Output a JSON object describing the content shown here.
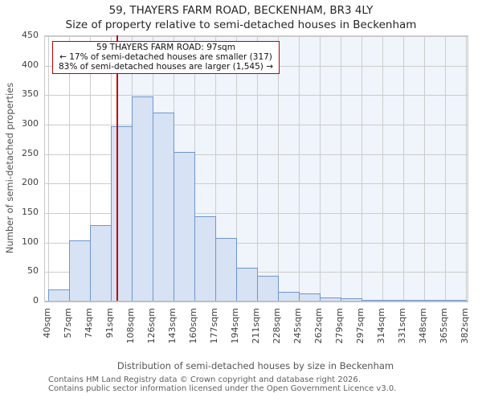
{
  "title": "59, THAYERS FARM ROAD, BECKENHAM, BR3 4LY",
  "subtitle": "Size of property relative to semi-detached houses in Beckenham",
  "annotation": {
    "line1": "59 THAYERS FARM ROAD: 97sqm",
    "line2": "← 17% of semi-detached houses are smaller (317)",
    "line3": "83% of semi-detached houses are larger (1,545) →"
  },
  "chart_data": {
    "type": "bar",
    "title": "Size of property relative to semi-detached houses in Beckenham",
    "categories": [
      "40sqm",
      "57sqm",
      "74sqm",
      "91sqm",
      "108sqm",
      "126sqm",
      "143sqm",
      "160sqm",
      "177sqm",
      "194sqm",
      "211sqm",
      "228sqm",
      "245sqm",
      "262sqm",
      "279sqm",
      "297sqm",
      "314sqm",
      "331sqm",
      "348sqm",
      "365sqm",
      "382sqm"
    ],
    "values": [
      20,
      103,
      130,
      297,
      348,
      320,
      253,
      145,
      108,
      57,
      44,
      17,
      13,
      7,
      5,
      2,
      1,
      1,
      1,
      1
    ],
    "xlabel": "Distribution of semi-detached houses by size in Beckenham",
    "ylabel": "Number of semi-detached properties",
    "ylim": [
      0,
      450
    ],
    "yticks": [
      0,
      50,
      100,
      150,
      200,
      250,
      300,
      350,
      400,
      450
    ],
    "grid": true,
    "legend": "none",
    "marker": {
      "value_sqm": 97,
      "label": "59 THAYERS FARM ROAD: 97sqm",
      "smaller_pct": "17%",
      "smaller_count": 317,
      "larger_pct": "83%",
      "larger_count": "1,545"
    },
    "colors": {
      "bar_fill": "#d7e2f4",
      "bar_edge": "#6d97cd",
      "marker_red": "#c00000",
      "shade_right_of_marker": "#f0f4fb",
      "gridline": "#cccccc"
    }
  },
  "footer": {
    "line1": "Contains HM Land Registry data © Crown copyright and database right 2026.",
    "line2": "Contains public sector information licensed under the Open Government Licence v3.0."
  }
}
